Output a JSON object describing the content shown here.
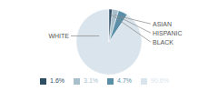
{
  "chart_data": {
    "type": "pie",
    "categories": [
      "WHITE",
      "ASIAN",
      "HISPANIC",
      "BLACK"
    ],
    "values": [
      90.6,
      4.7,
      3.1,
      1.6
    ],
    "value_labels": [
      "90.6%",
      "4.7%",
      "3.1%",
      "1.6%"
    ],
    "colors": [
      "#d9e4ec",
      "#5b8fa8",
      "#a8c0cc",
      "#2e4e63"
    ],
    "legend": "bottom"
  }
}
